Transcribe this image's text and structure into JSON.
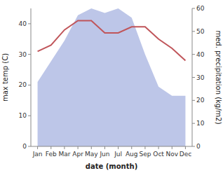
{
  "chart_data": {
    "type": "line",
    "categories": [
      "Jan",
      "Feb",
      "Mar",
      "Apr",
      "May",
      "Jun",
      "Jul",
      "Aug",
      "Sep",
      "Oct",
      "Nov",
      "Dec"
    ],
    "series": [
      {
        "type": "area",
        "axis": "y2",
        "color": "#bdc6e8",
        "values": [
          28,
          37,
          46,
          57,
          60,
          58,
          60,
          56,
          40,
          26,
          22,
          22
        ]
      },
      {
        "type": "line",
        "color": "#c0555a",
        "values": [
          31,
          33,
          38,
          41,
          41,
          37,
          37,
          39,
          39,
          35,
          32,
          28
        ]
      }
    ],
    "xlabel": "date (month)",
    "ylabel": "max temp (C)",
    "y2label": "med. precipitation (kg/m2)",
    "ylim": [
      0,
      45
    ],
    "yticks": [
      0,
      10,
      20,
      30,
      40
    ],
    "y2lim": [
      0,
      60
    ],
    "y2ticks": [
      0,
      10,
      20,
      30,
      40,
      50,
      60
    ],
    "grid": false
  }
}
